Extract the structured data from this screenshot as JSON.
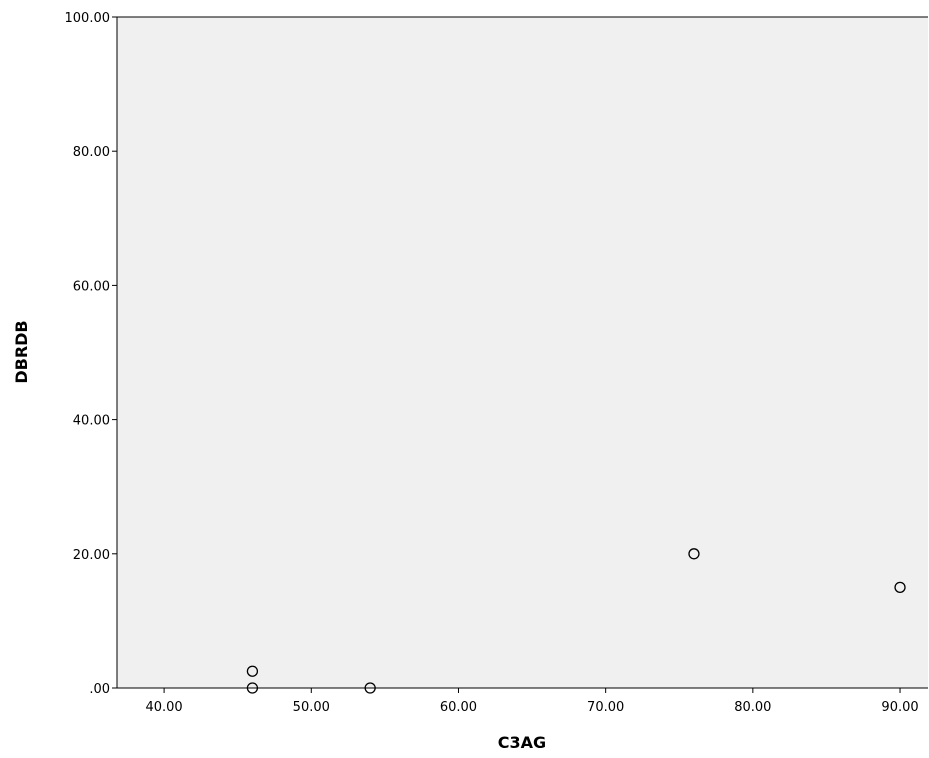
{
  "chart_data": {
    "type": "scatter",
    "title": "",
    "xlabel": "C3AG",
    "ylabel": "DBRDB",
    "xlim": [
      36.8,
      91.9
    ],
    "ylim": [
      0,
      100
    ],
    "x_ticks": [
      "40.00",
      "50.00",
      "60.00",
      "70.00",
      "80.00",
      "90.00"
    ],
    "y_ticks": [
      ".00",
      "20.00",
      "40.00",
      "60.00",
      "80.00",
      "100.00"
    ],
    "grid": false,
    "legend": "none",
    "plot_background": "#f0f0f0",
    "marker": "hollow-circle",
    "points": [
      {
        "x": 46.0,
        "y": 2.5
      },
      {
        "x": 46.0,
        "y": 0.0
      },
      {
        "x": 54.0,
        "y": 0.0
      },
      {
        "x": 76.0,
        "y": 20.0
      },
      {
        "x": 90.0,
        "y": 15.0
      }
    ]
  }
}
